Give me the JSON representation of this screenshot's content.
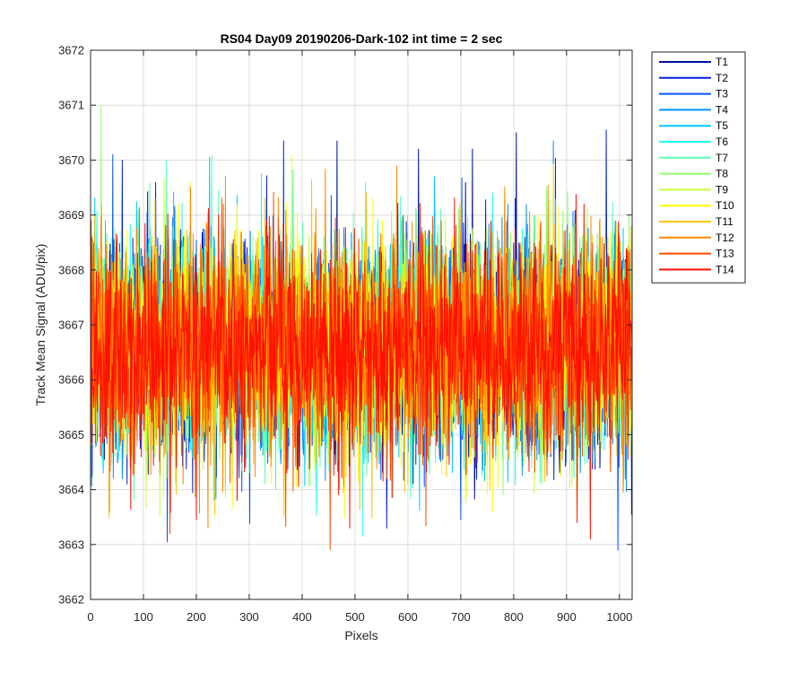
{
  "chart_data": {
    "type": "line",
    "title": "RS04 Day09 20190206-Dark-102 int time = 2 sec",
    "xlabel": "Pixels",
    "ylabel": "Track Mean Signal (ADU/pix)",
    "xlim": [
      0,
      1024
    ],
    "ylim": [
      3662,
      3672
    ],
    "xticks": [
      0,
      100,
      200,
      300,
      400,
      500,
      600,
      700,
      800,
      900,
      1000
    ],
    "yticks": [
      3662,
      3663,
      3664,
      3665,
      3666,
      3667,
      3668,
      3669,
      3670,
      3671,
      3672
    ],
    "grid": true,
    "legend_position": "outside-top-right",
    "x": {
      "start": 1,
      "end": 1024,
      "step": 1
    },
    "noise": {
      "mean": 3666.6,
      "std": 1.2,
      "min": 3662.9,
      "max": 3671.0
    },
    "series": [
      {
        "name": "T1",
        "color": "#000f9f",
        "spikes": [
          [
            466,
            3670.35
          ],
          [
            620,
            3670.2
          ],
          [
            722,
            3670.2
          ],
          [
            805,
            3670.5
          ]
        ]
      },
      {
        "name": "T2",
        "color": "#0022df",
        "spikes": [
          [
            60,
            3670.0
          ],
          [
            365,
            3670.35
          ],
          [
            975,
            3670.55
          ],
          [
            560,
            3663.3
          ]
        ]
      },
      {
        "name": "T3",
        "color": "#0055ff",
        "spikes": [
          [
            42,
            3670.1
          ],
          [
            145,
            3663.05
          ],
          [
            700,
            3663.45
          ],
          [
            997,
            3662.9
          ]
        ]
      },
      {
        "name": "T4",
        "color": "#0090ff",
        "spikes": [
          [
            875,
            3670.35
          ],
          [
            82,
            3664.5
          ]
        ]
      },
      {
        "name": "T5",
        "color": "#00c8ff",
        "spikes": [
          [
            225,
            3670.05
          ],
          [
            650,
            3669.7
          ]
        ]
      },
      {
        "name": "T6",
        "color": "#1efff0",
        "spikes": [
          [
            350,
            3664.0
          ],
          [
            760,
            3669.4
          ]
        ]
      },
      {
        "name": "T7",
        "color": "#5affb0",
        "spikes": [
          [
            520,
            3669.6
          ],
          [
            300,
            3664.3
          ]
        ]
      },
      {
        "name": "T8",
        "color": "#8fff70",
        "spikes": [
          [
            20,
            3671.0
          ],
          [
            780,
            3663.9
          ]
        ]
      },
      {
        "name": "T9",
        "color": "#c8ff3a",
        "spikes": [
          [
            105,
            3663.65
          ],
          [
            255,
            3663.85
          ],
          [
            920,
            3663.65
          ]
        ]
      },
      {
        "name": "T10",
        "color": "#ffff00",
        "spikes": [
          [
            188,
            3669.6
          ],
          [
            480,
            3663.5
          ],
          [
            760,
            3663.6
          ]
        ]
      },
      {
        "name": "T11",
        "color": "#ffc200",
        "spikes": [
          [
            330,
            3669.3
          ],
          [
            600,
            3664.1
          ]
        ]
      },
      {
        "name": "T12",
        "color": "#ff8900",
        "spikes": [
          [
            175,
            3664.1
          ],
          [
            560,
            3664.2
          ]
        ]
      },
      {
        "name": "T13",
        "color": "#ff4c00",
        "spikes": [
          [
            150,
            3663.2
          ],
          [
            470,
            3664.0
          ]
        ]
      },
      {
        "name": "T14",
        "color": "#ff1000",
        "spikes": [
          [
            200,
            3663.45
          ],
          [
            277,
            3663.8
          ],
          [
            490,
            3663.3
          ],
          [
            920,
            3663.4
          ],
          [
            945,
            3663.1
          ]
        ]
      }
    ]
  }
}
